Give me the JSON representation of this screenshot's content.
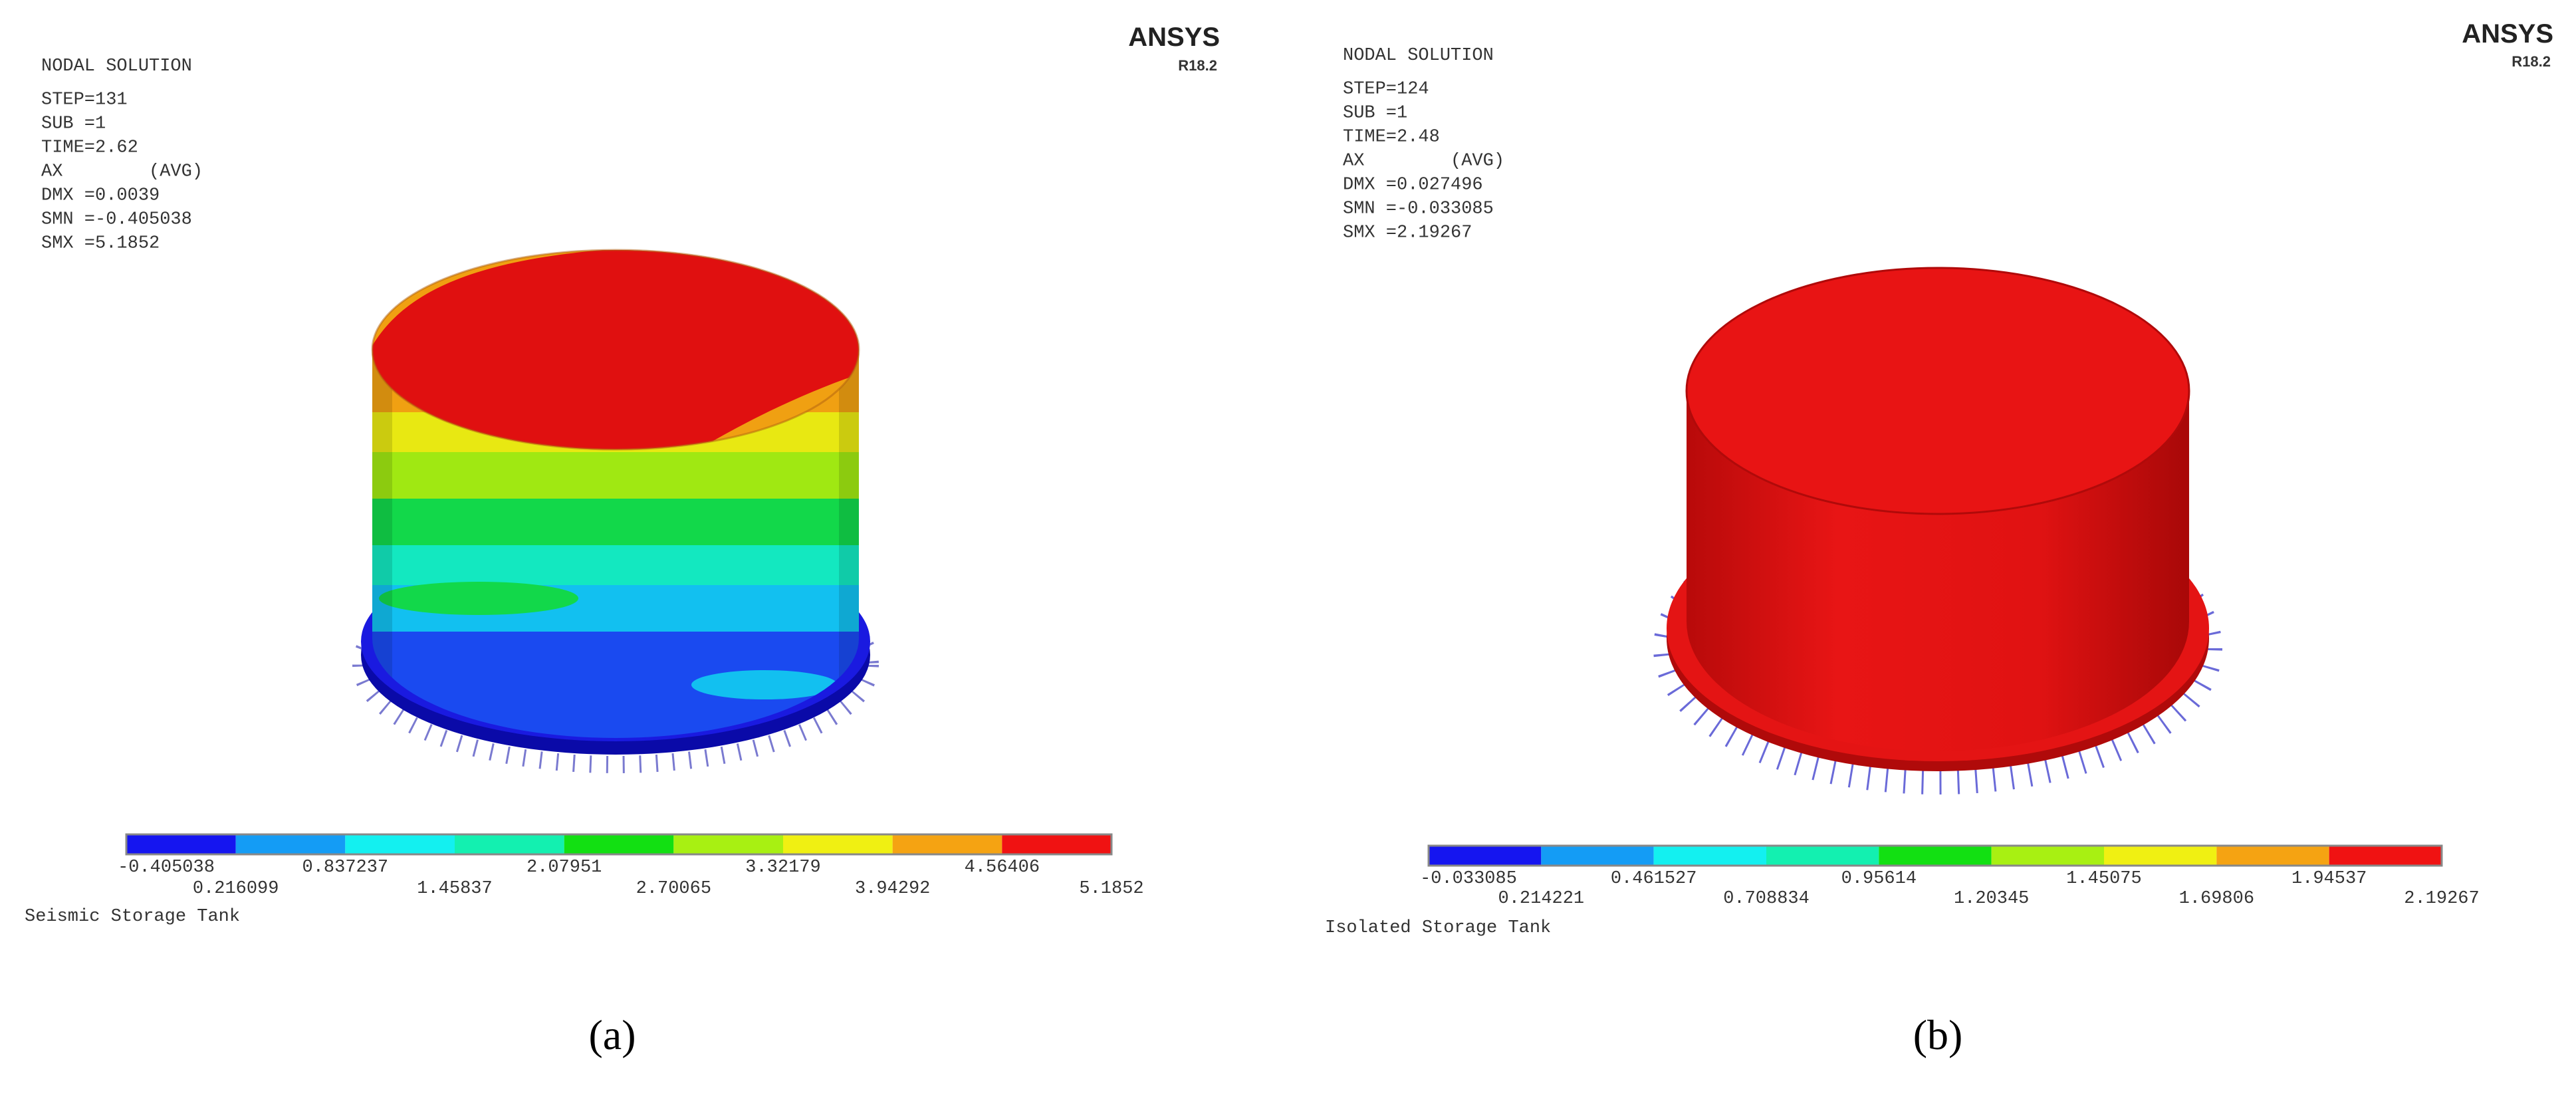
{
  "panels": [
    {
      "brand": "ANSYS",
      "version": "R18.2",
      "header": [
        "NODAL SOLUTION",
        "STEP=131",
        "SUB =1",
        "TIME=2.62",
        "AX        (AVG)",
        "DMX =0.0039",
        "SMN =-0.405038",
        "SMX =5.1852"
      ],
      "legend_colors": [
        "#1515f0",
        "#149cf5",
        "#13f0f0",
        "#13f0b0",
        "#12e012",
        "#a8f012",
        "#f0f012",
        "#f5a312",
        "#f01212"
      ],
      "contour_values": [
        "-0.405038",
        "0.216099",
        "0.837237",
        "1.45837",
        "2.07951",
        "2.70065",
        "3.32179",
        "3.94292",
        "4.56406",
        "5.1852"
      ],
      "subtitle": "Seismic Storage Tank",
      "caption": "(a)"
    },
    {
      "brand": "ANSYS",
      "version": "R18.2",
      "header": [
        "NODAL SOLUTION",
        "STEP=124",
        "SUB =1",
        "TIME=2.48",
        "AX        (AVG)",
        "DMX =0.027496",
        "SMN =-0.033085",
        "SMX =2.19267"
      ],
      "legend_colors": [
        "#1515f0",
        "#149cf5",
        "#13f0f0",
        "#13f0b0",
        "#12e012",
        "#a8f012",
        "#f0f012",
        "#f5a312",
        "#f01212"
      ],
      "contour_values": [
        "-0.033085",
        "0.214221",
        "0.461527",
        "0.708834",
        "0.95614",
        "1.20345",
        "1.45075",
        "1.69806",
        "1.94537",
        "2.19267"
      ],
      "subtitle": "Isolated Storage Tank",
      "caption": "(b)"
    }
  ]
}
